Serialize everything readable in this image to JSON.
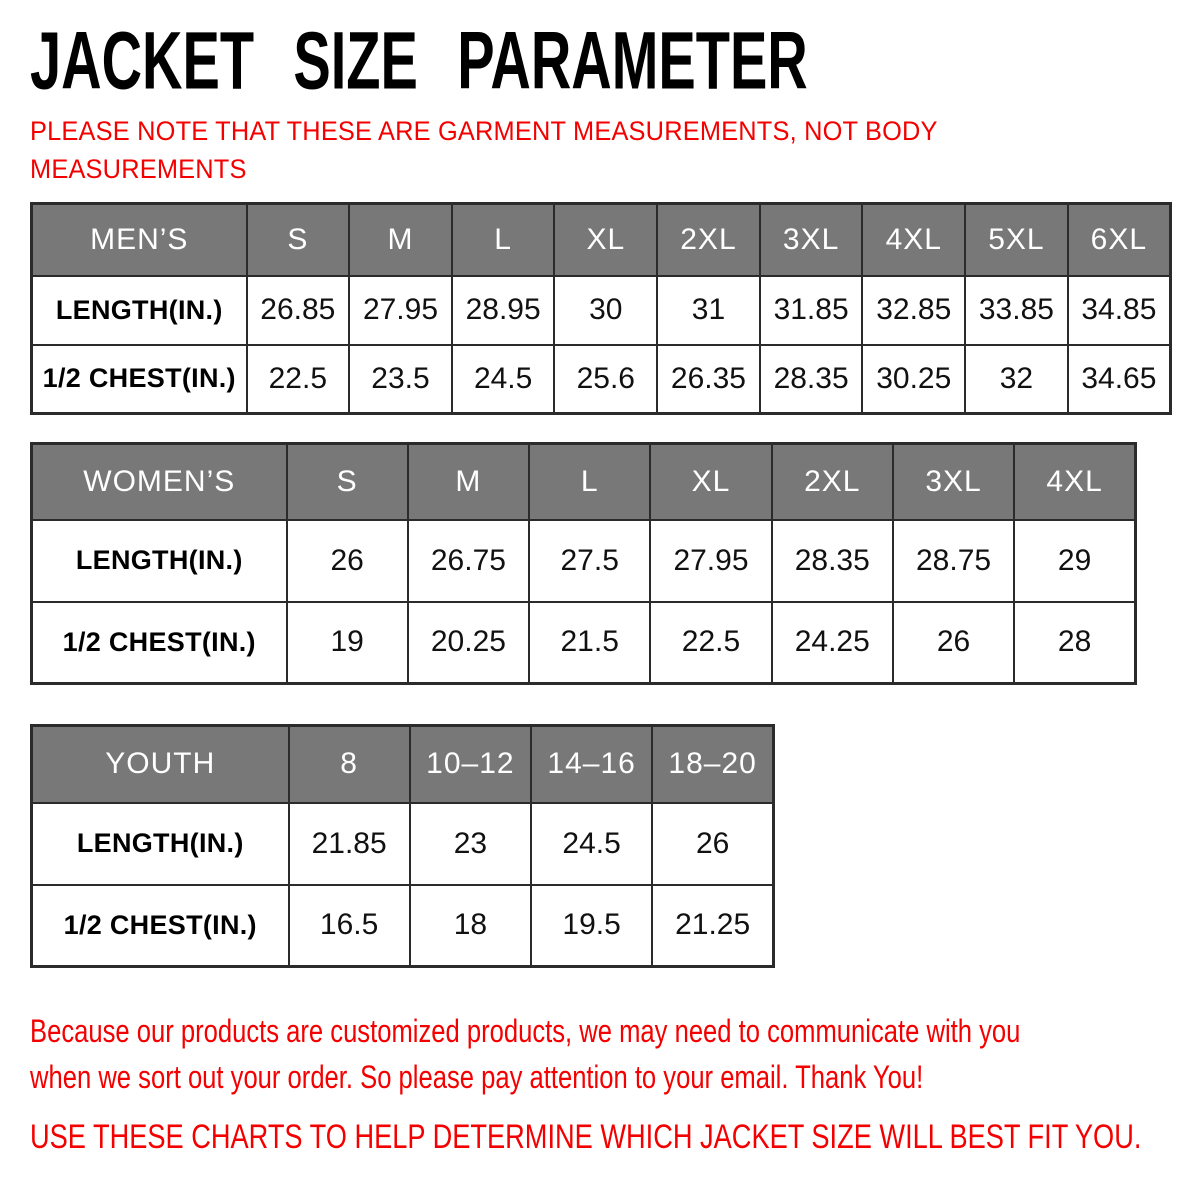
{
  "page": {
    "title": "JACKET SIZE PARAMETER",
    "top_note_line1": "PLEASE NOTE THAT THESE ARE GARMENT MEASUREMENTS, NOT BODY",
    "top_note_line2": "MEASUREMENTS",
    "bottom_note_line1": "Because our products are customized products, we may need to communicate with you",
    "bottom_note_line2": "when we sort out your order. So please pay attention to your email. Thank You!",
    "bottom_caps_note": "USE THESE CHARTS TO HELP DETERMINE WHICH JACKET SIZE WILL BEST FIT YOU."
  },
  "colors": {
    "header_bg": "#787878",
    "header_text": "#ffffff",
    "border": "#2b2b2b",
    "note_red": "#f40000",
    "title_black": "#000000"
  },
  "tables": [
    {
      "id": "mens",
      "header": [
        "MEN’S",
        "S",
        "M",
        "L",
        "XL",
        "2XL",
        "3XL",
        "4XL",
        "5XL",
        "6XL"
      ],
      "rows": [
        {
          "label": "LENGTH(IN.)",
          "values": [
            "26.85",
            "27.95",
            "28.95",
            "30",
            "31",
            "31.85",
            "32.85",
            "33.85",
            "34.85"
          ]
        },
        {
          "label": "1/2 CHEST(IN.)",
          "values": [
            "22.5",
            "23.5",
            "24.5",
            "25.6",
            "26.35",
            "28.35",
            "30.25",
            "32",
            "34.65"
          ]
        }
      ]
    },
    {
      "id": "womens",
      "header": [
        "WOMEN’S",
        "S",
        "M",
        "L",
        "XL",
        "2XL",
        "3XL",
        "4XL"
      ],
      "rows": [
        {
          "label": "LENGTH(IN.)",
          "values": [
            "26",
            "26.75",
            "27.5",
            "27.95",
            "28.35",
            "28.75",
            "29"
          ]
        },
        {
          "label": "1/2 CHEST(IN.)",
          "values": [
            "19",
            "20.25",
            "21.5",
            "22.5",
            "24.25",
            "26",
            "28"
          ]
        }
      ]
    },
    {
      "id": "youth",
      "header": [
        "YOUTH",
        "8",
        "10–12",
        "14–16",
        "18–20"
      ],
      "rows": [
        {
          "label": "LENGTH(IN.)",
          "values": [
            "21.85",
            "23",
            "24.5",
            "26"
          ]
        },
        {
          "label": "1/2 CHEST(IN.)",
          "values": [
            "16.5",
            "18",
            "19.5",
            "21.25"
          ]
        }
      ]
    }
  ]
}
